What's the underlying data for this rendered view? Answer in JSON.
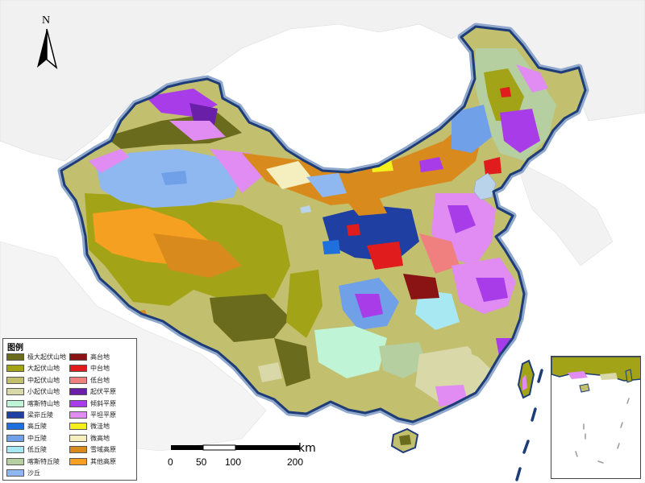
{
  "map": {
    "north_label": "N",
    "legend": {
      "title": "图例",
      "items_left": [
        {
          "label": "极大起伏山地",
          "color": "#6b6b1e"
        },
        {
          "label": "大起伏山地",
          "color": "#a3a318"
        },
        {
          "label": "中起伏山地",
          "color": "#c2bf6e"
        },
        {
          "label": "小起伏山地",
          "color": "#d9d8a8"
        },
        {
          "label": "喀斯特山地",
          "color": "#bff5d6"
        },
        {
          "label": "梁峁丘陵",
          "color": "#1f3fa3"
        },
        {
          "label": "高丘陵",
          "color": "#1f6fdd"
        },
        {
          "label": "中丘陵",
          "color": "#6fa0e8"
        },
        {
          "label": "低丘陵",
          "color": "#a8e8f2"
        },
        {
          "label": "喀斯特丘陵",
          "color": "#b6cfa0"
        },
        {
          "label": "沙丘",
          "color": "#8fb7f0"
        }
      ],
      "items_right": [
        {
          "label": "高台地",
          "color": "#8a1414"
        },
        {
          "label": "中台地",
          "color": "#e01c1c"
        },
        {
          "label": "低台地",
          "color": "#f08080"
        },
        {
          "label": "起伏平原",
          "color": "#6a1fa8"
        },
        {
          "label": "倾斜平原",
          "color": "#a83ce8"
        },
        {
          "label": "平坦平原",
          "color": "#e08cf2"
        },
        {
          "label": "微洼地",
          "color": "#f5f01c"
        },
        {
          "label": "微高地",
          "color": "#f5efc0"
        },
        {
          "label": "雪域高原",
          "color": "#d98a1c"
        },
        {
          "label": "其他高原",
          "color": "#f5a020"
        }
      ]
    },
    "scale": {
      "unit": "km",
      "ticks": [
        "0",
        "50",
        "100",
        "200"
      ]
    },
    "colors": {
      "border": "#1e3c78",
      "sea": "#ffffff",
      "neighbors": "#eeeeee",
      "water": "#b9d3ea"
    }
  }
}
